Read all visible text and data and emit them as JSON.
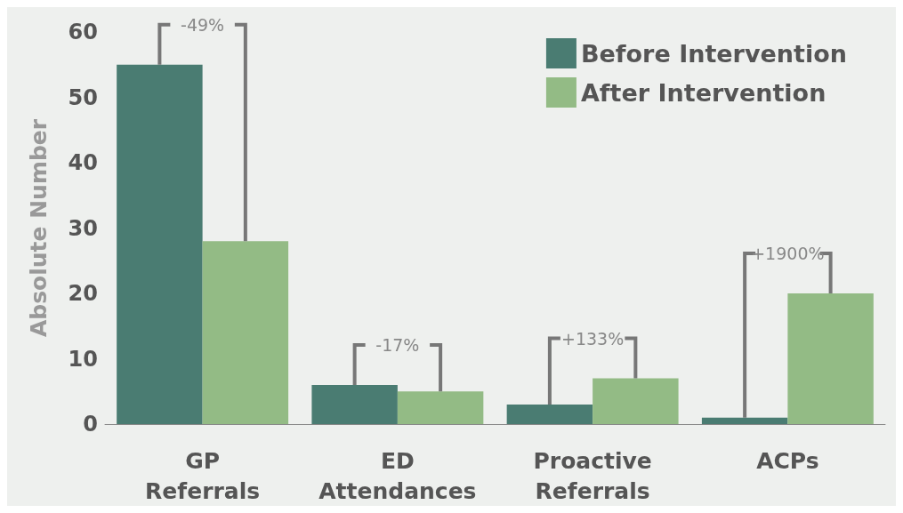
{
  "chart_data": {
    "type": "bar",
    "ylabel": "Absolute Number",
    "categories": [
      "GP Referrals",
      "ED Attendances",
      "Proactive Referrals",
      "ACPs"
    ],
    "series": [
      {
        "name": "Before Intervention",
        "color": "#4a7c72",
        "values": [
          55,
          6,
          3,
          1
        ]
      },
      {
        "name": "After Intervention",
        "color": "#93bb85",
        "values": [
          28,
          5,
          7,
          20
        ]
      }
    ],
    "ylim": [
      0,
      60
    ],
    "yticks": [
      0,
      10,
      20,
      30,
      40,
      50,
      60
    ],
    "grid": false,
    "legend": "top right",
    "annotations": [
      {
        "text": "-49%",
        "x": "GP Referrals",
        "y": 55
      },
      {
        "text": "-17%",
        "x": "ED Attendances",
        "y": 6
      },
      {
        "text": "+133%",
        "x": "Proactive Referrals",
        "y": 7
      },
      {
        "text": "+1900%",
        "x": "ACPs",
        "y": 20
      }
    ]
  }
}
